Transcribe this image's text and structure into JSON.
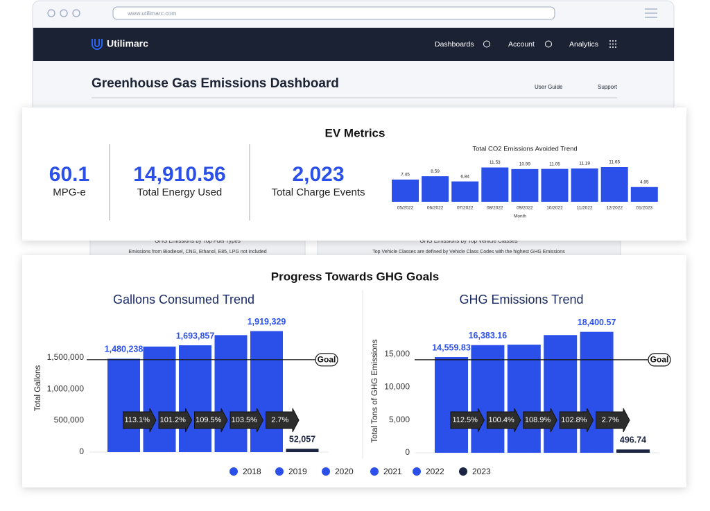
{
  "browser": {
    "url": "www.utilimarc.com"
  },
  "nav": {
    "brand": "Utilimarc",
    "items": [
      "Dashboards",
      "Account",
      "Analytics"
    ]
  },
  "header": {
    "title": "Greenhouse Gas Emissions Dashboard",
    "links": [
      "User Guide",
      "Support"
    ]
  },
  "ev_metrics": {
    "title": "EV Metrics",
    "metrics": [
      {
        "value": "60.1",
        "label": "MPG-e"
      },
      {
        "value": "14,910.56",
        "label": "Total Energy Used"
      },
      {
        "value": "2,023",
        "label": "Total Charge Events"
      }
    ]
  },
  "background_cards": [
    {
      "title": "GHG Emissions by Top Fuel Types",
      "subtitle": "Emissions from Biodiesel, CNG, Ethanol, E85, LPG not included"
    },
    {
      "title": "GHG Emissions by Top Vehicle Classes",
      "subtitle": "Top Vehicle Classes are defined by Vehicle Class Codes with the highest GHG Emissions"
    }
  ],
  "progress": {
    "title": "Progress Towards GHG Goals"
  },
  "chart_data": [
    {
      "type": "bar",
      "title": "Total CO2 Emissions Avoided Trend",
      "x_label": "Month",
      "categories": [
        "05/2022",
        "06/2022",
        "07/2022",
        "08/2022",
        "09/2022",
        "10/2022",
        "11/2022",
        "12/2022",
        "01/2023"
      ],
      "values": [
        7.45,
        8.59,
        6.84,
        11.53,
        10.99,
        11.05,
        11.19,
        11.65,
        4.95
      ],
      "color": "#2b50ea"
    },
    {
      "type": "bar",
      "title": "Gallons Consumed Trend",
      "y_label": "Total Gallons",
      "categories": [
        "2018",
        "2019",
        "2020",
        "2021",
        "2022",
        "2023"
      ],
      "values": [
        1480238,
        1674000,
        1693857,
        1855000,
        1919329,
        52057
      ],
      "value_labels": [
        "1,480,238",
        null,
        "1,693,857",
        null,
        "1,919,329",
        "52,057"
      ],
      "colors": [
        "#2b50ea",
        "#2b50ea",
        "#2b50ea",
        "#2b50ea",
        "#2b50ea",
        "#1b2440"
      ],
      "ylim": [
        0,
        2200000
      ],
      "yticks": [
        0,
        {
          "value": 500000,
          "label": "500,000"
        },
        {
          "value": 1000000,
          "label": "1,000,000"
        },
        {
          "value": 1500000,
          "label": "1,500,000"
        }
      ],
      "goal": 1465000,
      "goal_label": "Goal",
      "changes": [
        113.1,
        101.2,
        109.5,
        103.5,
        2.7
      ],
      "change_labels": [
        "113.1%",
        "101.2%",
        "109.5%",
        "103.5%",
        "2.7%"
      ]
    },
    {
      "type": "bar",
      "title": "GHG Emissions Trend",
      "y_label": "Total Tons of GHG Emissions",
      "categories": [
        "2018",
        "2019",
        "2020",
        "2021",
        "2022",
        "2023"
      ],
      "values": [
        14559.83,
        16383.16,
        16450,
        17910,
        18400.57,
        496.74
      ],
      "value_labels": [
        "14,559.83",
        "16,383.16",
        null,
        null,
        "18,400.57",
        "496.74"
      ],
      "colors": [
        "#2b50ea",
        "#2b50ea",
        "#2b50ea",
        "#2b50ea",
        "#2b50ea",
        "#1b2440"
      ],
      "ylim": [
        0,
        21000
      ],
      "yticks": [
        0,
        {
          "value": 5000,
          "label": "5,000"
        },
        {
          "value": 10000,
          "label": "10,000"
        },
        {
          "value": 15000,
          "label": "15,000"
        }
      ],
      "goal": 14150,
      "goal_label": "Goal",
      "changes": [
        112.5,
        100.4,
        108.9,
        102.8,
        2.7
      ],
      "change_labels": [
        "112.5%",
        "100.4%",
        "108.9%",
        "102.8%",
        "2.7%"
      ]
    }
  ]
}
